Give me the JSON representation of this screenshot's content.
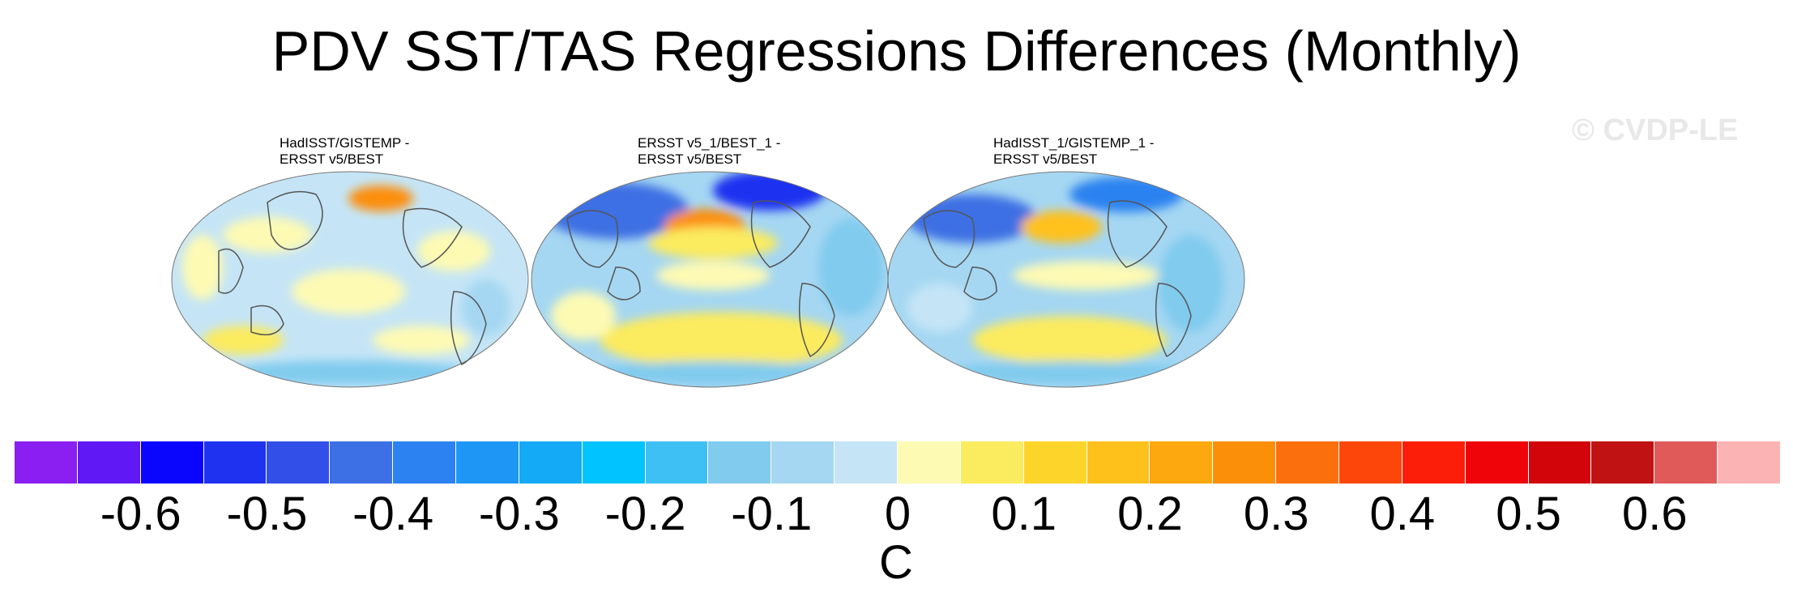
{
  "title": "PDV SST/TAS Regressions Differences (Monthly)",
  "watermark": "© CVDP-LE",
  "panels": [
    {
      "label": "HadISST/GISTEMP -\nERSST v5/BEST",
      "tone": "mixed"
    },
    {
      "label": "ERSST v5_1/BEST_1 -\nERSST v5/BEST",
      "tone": "cool-north"
    },
    {
      "label": "HadISST_1/GISTEMP_1 -\nERSST v5/BEST",
      "tone": "cool"
    }
  ],
  "chart_data": {
    "type": "heatmap",
    "title": "PDV SST/TAS Regressions Differences (Monthly)",
    "projection": "Robinson (Pacific-centered)",
    "colorbar": {
      "unit": "C",
      "colors": [
        "#8b1ef0",
        "#6019f5",
        "#0a05fd",
        "#1e32f0",
        "#3250e8",
        "#3c70e4",
        "#2c82f0",
        "#1e96f5",
        "#14aaf5",
        "#00c3ff",
        "#3fc0f5",
        "#80cbee",
        "#a5d7f2",
        "#c5e5f6",
        "#fdfab4",
        "#fbeb5f",
        "#fdd52a",
        "#fec11c",
        "#fca80e",
        "#fc8f0a",
        "#fb700c",
        "#fd460a",
        "#fd1e0a",
        "#ef0509",
        "#d2050a",
        "#c01212",
        "#e05a5a",
        "#fcb3b3"
      ],
      "tick_labels": [
        "-0.6",
        "-0.5",
        "-0.4",
        "-0.3",
        "-0.2",
        "-0.1",
        "0",
        "0.1",
        "0.2",
        "0.3",
        "0.4",
        "0.5",
        "0.6"
      ],
      "tick_values": [
        -0.6,
        -0.5,
        -0.4,
        -0.3,
        -0.2,
        -0.1,
        0,
        0.1,
        0.2,
        0.3,
        0.4,
        0.5,
        0.6
      ]
    }
  }
}
